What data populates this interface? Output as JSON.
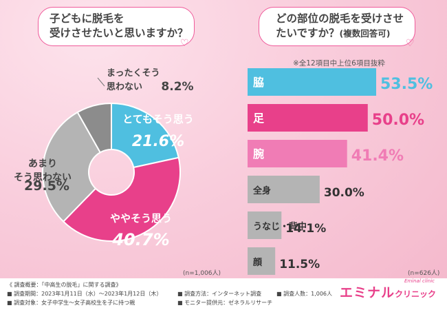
{
  "q1": {
    "line1": "子どもに脱毛を",
    "line2": "受けさせたいと思いますか？"
  },
  "q2": {
    "line1": "どの部位の脱毛を受けさせ",
    "line2": "たいですか？",
    "line2_small": "(複数回答可)"
  },
  "note_top": "※全12項目中上位6項目抜粋",
  "n_left": "(n=1,006人)",
  "n_right": "(n=626人)",
  "footer": {
    "title": "《 調査概要：「中高生の脱毛」に関する調査》",
    "period": "■ 調査期間：2023年1月11日（水）〜2023年1月12日（木）",
    "target": "■ 調査対象：女子中学生〜女子高校生を子に持つ親",
    "method": "■ 調査方法：インターネット調査",
    "provider": "■ モニター提供元：ゼネラルリサーチ",
    "count": "■ 調査人数：1,006人"
  },
  "logo": {
    "main": "エミナル",
    "sub": "クリニック",
    "script": "Eminal clinic"
  },
  "chart_data": [
    {
      "type": "pie",
      "title": "子どもに脱毛を受けさせたいと思いますか？",
      "slices": [
        {
          "label": "とてもそう思う",
          "value": 21.6,
          "color": "#4fbfe0"
        },
        {
          "label": "ややそう思う",
          "value": 40.7,
          "color": "#e8408a"
        },
        {
          "label": "あまりそう思わない",
          "value": 29.5,
          "color": "#b4b4b4"
        },
        {
          "label": "まったくそう思わない",
          "value": 8.2,
          "color": "#8c8c8c"
        }
      ],
      "value_labels": [
        "21.6%",
        "40.7%",
        "29.5%",
        "8.2%"
      ]
    },
    {
      "type": "bar",
      "orientation": "horizontal",
      "title": "どの部位の脱毛を受けさせたいですか？(複数回答可)",
      "categories": [
        "脇",
        "足",
        "腕",
        "全身",
        "うなじ・背中",
        "顔"
      ],
      "values": [
        53.5,
        50.0,
        41.4,
        30.0,
        14.1,
        11.5
      ],
      "colors": [
        "#4fbfe0",
        "#e8408a",
        "#f07cb5",
        "#b4b4b4",
        "#b4b4b4",
        "#b4b4b4"
      ],
      "value_labels": [
        "53.5%",
        "50.0%",
        "41.4%",
        "30.0%",
        "14.1%",
        "11.5%"
      ],
      "xlim": [
        0,
        53.5
      ]
    }
  ]
}
